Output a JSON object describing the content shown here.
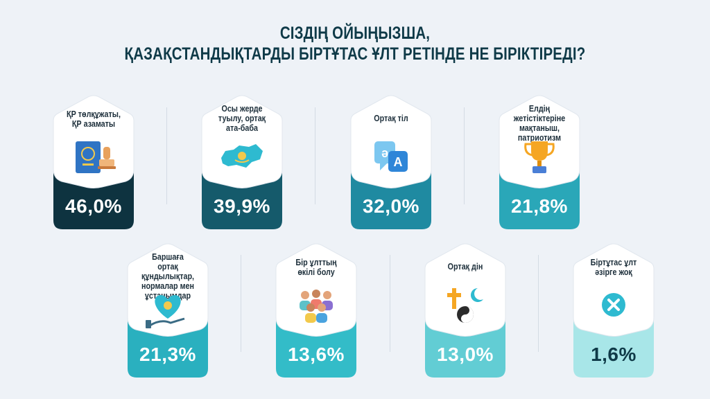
{
  "title": {
    "line1": "СІЗДІҢ ОЙЫҢЫЗША,",
    "line2": "ҚАЗАҚСТАНДЫҚТАРДЫ БІРТҰТАС ҰЛТ РЕТІНДЕ НЕ БІРІКТІРЕДІ?"
  },
  "chart_data": {
    "type": "bar",
    "unit": "%",
    "categories": [
      "ҚР төлқұжаты, ҚР азаматы",
      "Осы жерде туылу, ортақ ата-баба",
      "Ортақ тіл",
      "Елдің жетістіктеріне мақтаныш, патриотизм",
      "Баршаға ортақ құндылықтар, нормалар мен ұстанымдар",
      "Бір ұлттың өкілі болу",
      "Ортақ дін",
      "Біртұтас ұлт әзірге жоқ"
    ],
    "values": [
      46.0,
      39.9,
      32.0,
      21.8,
      21.3,
      13.6,
      13.0,
      1.6
    ]
  },
  "cards": [
    {
      "label": [
        "ҚР төлқұжаты,",
        "ҚР азаматы"
      ],
      "value": "46,0%",
      "color": "#0e3340",
      "icon": "passport-stamp-icon"
    },
    {
      "label": [
        "Осы жерде",
        "туылу, ортақ",
        "ата-баба"
      ],
      "value": "39,9%",
      "color": "#155a6b",
      "icon": "kazakhstan-map-icon"
    },
    {
      "label": [
        "Ортақ тіл"
      ],
      "value": "32,0%",
      "color": "#1f8aa1",
      "icon": "translate-icon"
    },
    {
      "label": [
        "Елдің жетістіктеріне",
        "мақтаныш,",
        "патриотизм"
      ],
      "value": "21,8%",
      "color": "#2aa7b8",
      "icon": "trophy-icon"
    },
    {
      "label": [
        "Баршаға",
        "ортақ құндылықтар,",
        "нормалар мен",
        "ұстанымдар"
      ],
      "value": "21,3%",
      "color": "#2ab0bf",
      "icon": "heart-flag-hand-icon"
    },
    {
      "label": [
        "Бір ұлттың",
        "өкілі болу"
      ],
      "value": "13,6%",
      "color": "#33bcc8",
      "icon": "people-group-icon"
    },
    {
      "label": [
        "Ортақ дін"
      ],
      "value": "13,0%",
      "color": "#62cdd4",
      "icon": "religion-symbols-icon"
    },
    {
      "label": [
        "Біртұтас ұлт",
        "әзірге жоқ"
      ],
      "value": "1,6%",
      "color": "#a8e6e8",
      "icon": "close-circle-icon"
    }
  ]
}
